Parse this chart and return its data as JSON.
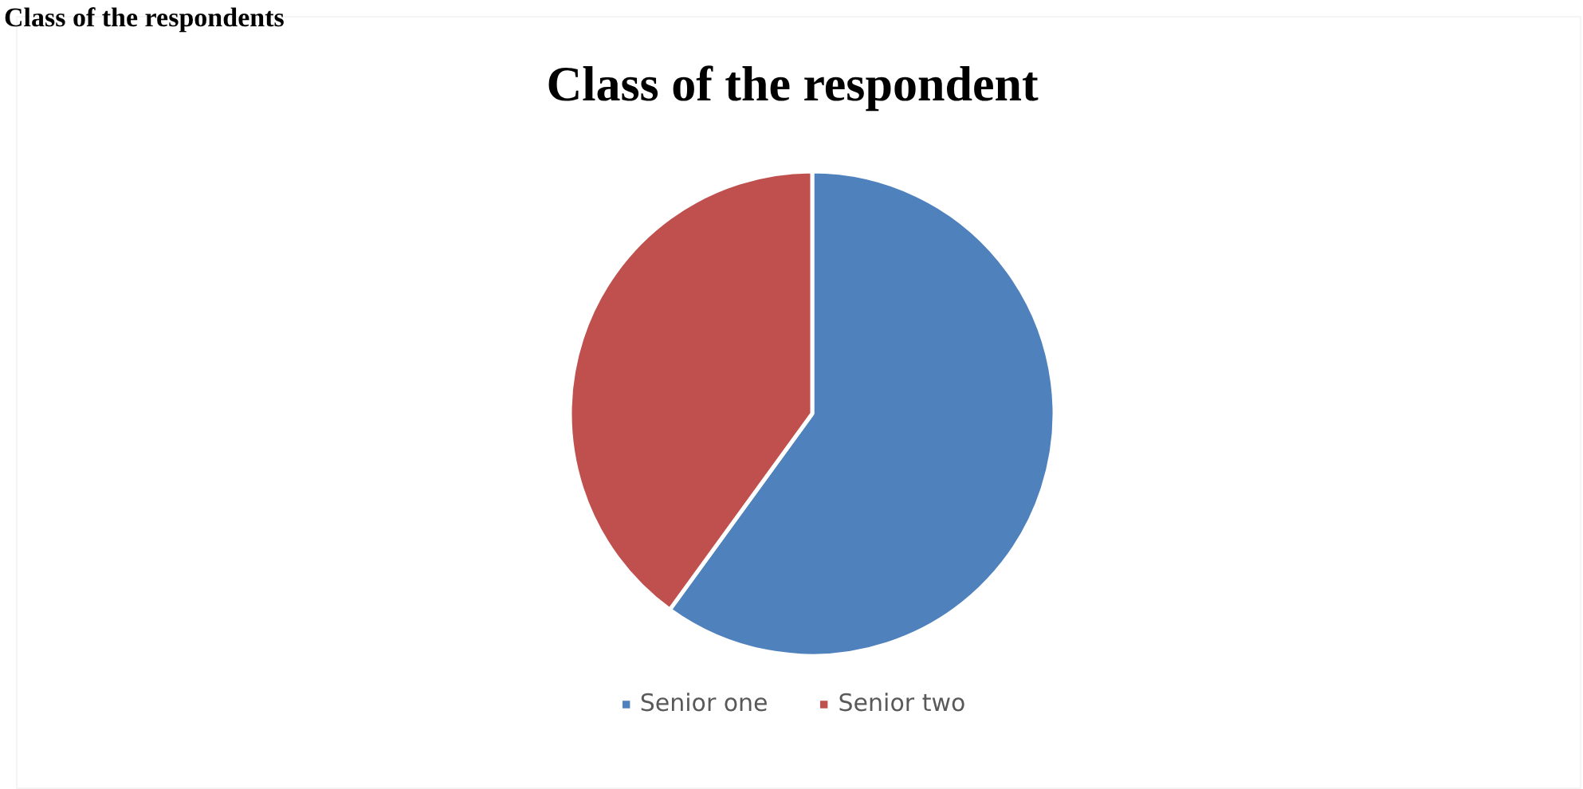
{
  "chart_data": {
    "type": "pie",
    "title": "Class of the respondent",
    "annotations": [
      "Class of the respondents"
    ],
    "categories": [
      "Senior one",
      "Senior two"
    ],
    "values": [
      60,
      40
    ],
    "colors": [
      "#4f81bd",
      "#c0504d"
    ],
    "legend": "bottom"
  }
}
